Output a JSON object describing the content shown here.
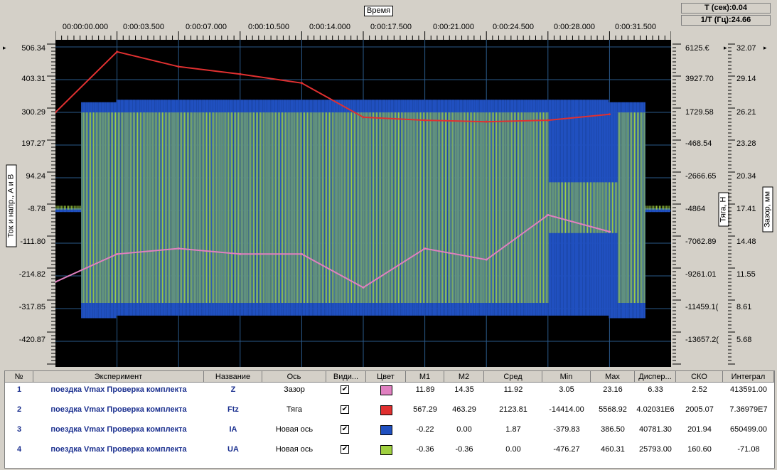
{
  "top": {
    "x_label": "Время",
    "period": "T (сек):0.04",
    "freq": "1/T (Гц):24.66"
  },
  "x_ticks": [
    "00:00:00.000",
    "0:00:03.500",
    "0:00:07.000",
    "0:00:10.500",
    "0:00:14.000",
    "0:00:17.500",
    "0:00:21.000",
    "0:00:24.500",
    "0:00:28.000",
    "0:00:31.500"
  ],
  "left_axis": {
    "label": "Ток и напр., А и В",
    "ticks": [
      "506.34",
      "403.31",
      "300.29",
      "197.27",
      "94.24",
      "-8.78",
      "-111.80",
      "-214.82",
      "-317.85",
      "-420.87"
    ]
  },
  "mid_axis": {
    "label": "Тяга, Н",
    "ticks": [
      "6125.€",
      "3927.70",
      "1729.58",
      "-468.54",
      "-2666.65",
      "-4864",
      "-7062.89",
      "-9261.01",
      "-11459.1(",
      "-13657.2("
    ]
  },
  "right_axis": {
    "label": "Зазор, мм",
    "ticks": [
      "32.07",
      "29.14",
      "26.21",
      "23.28",
      "20.34",
      "17.41",
      "14.48",
      "11.55",
      "8.61",
      "5.68"
    ]
  },
  "colors": {
    "Z": "#e080c0",
    "Ftz": "#e03030",
    "IA": "#2050c0",
    "UA": "#a0d040"
  },
  "chart_data": {
    "type": "line",
    "title": "",
    "xlabel": "Время",
    "ylabel": "Ток и напр., А и В",
    "x": [
      0,
      3.5,
      7,
      10.5,
      14,
      17.5,
      21,
      24.5,
      28,
      31.5
    ],
    "series": [
      {
        "name": "Z",
        "axis": "Зазор",
        "values": [
          11.0,
          13.5,
          14.0,
          13.5,
          13.5,
          10.5,
          14.0,
          13.0,
          17.0,
          15.5
        ]
      },
      {
        "name": "Ftz",
        "axis": "Тяга",
        "values": [
          1730,
          5800,
          4800,
          4300,
          3700,
          1400,
          1200,
          1100,
          1200,
          1600
        ]
      },
      {
        "name": "IA",
        "axis": "Новая ось",
        "values": [
          -8,
          0,
          0,
          0,
          0,
          0,
          0,
          0,
          0,
          -8
        ]
      },
      {
        "name": "UA",
        "axis": "Новая ось",
        "values": [
          0,
          0,
          0,
          0,
          0,
          0,
          0,
          0,
          0,
          0
        ]
      }
    ]
  },
  "table": {
    "headers": [
      "№",
      "Эксперимент",
      "Название",
      "Ось",
      "Види...",
      "Цвет",
      "M1",
      "M2",
      "Сред",
      "Min",
      "Max",
      "Диспер...",
      "СКО",
      "Интеграл"
    ],
    "rows": [
      {
        "n": "1",
        "exp": "поездка Vmax Проверка комплекта",
        "name": "Z",
        "axis": "Зазор",
        "check": "✔",
        "color": "#e080c0",
        "m1": "11.89",
        "m2": "14.35",
        "avg": "11.92",
        "min": "3.05",
        "max": "23.16",
        "disp": "6.33",
        "sko": "2.52",
        "integ": "413591.00"
      },
      {
        "n": "2",
        "exp": "поездка Vmax Проверка комплекта",
        "name": "Ftz",
        "axis": "Тяга",
        "check": "✔",
        "color": "#e03030",
        "m1": "567.29",
        "m2": "463.29",
        "avg": "2123.81",
        "min": "-14414.00",
        "max": "5568.92",
        "disp": "4.02031E6",
        "sko": "2005.07",
        "integ": "7.36979E7"
      },
      {
        "n": "3",
        "exp": "поездка Vmax Проверка комплекта",
        "name": "IA",
        "axis": "Новая ось",
        "check": "✔",
        "color": "#2050c0",
        "m1": "-0.22",
        "m2": "0.00",
        "avg": "1.87",
        "min": "-379.83",
        "max": "386.50",
        "disp": "40781.30",
        "sko": "201.94",
        "integ": "650499.00"
      },
      {
        "n": "4",
        "exp": "поездка Vmax Проверка комплекта",
        "name": "UA",
        "axis": "Новая ось",
        "check": "✔",
        "color": "#a0d040",
        "m1": "-0.36",
        "m2": "-0.36",
        "avg": "0.00",
        "min": "-476.27",
        "max": "460.31",
        "disp": "25793.00",
        "sko": "160.60",
        "integ": "-71.08"
      }
    ]
  }
}
